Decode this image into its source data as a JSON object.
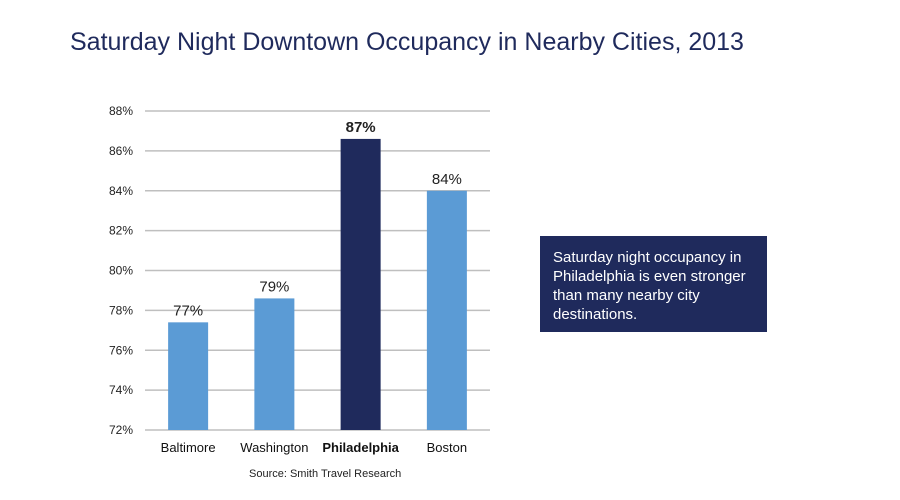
{
  "title": "Saturday Night Downtown Occupancy in Nearby Cities, 2013",
  "source": "Source: Smith Travel Research",
  "callout": "Saturday night occupancy in Philadelphia is even stronger than many nearby city destinations.",
  "colors": {
    "bar": "#5b9bd5",
    "highlight_bar": "#1f2a5c",
    "grid": "#bfbfbf",
    "title": "#1f2a5c",
    "callout_bg": "#1f2a5c"
  },
  "chart_data": {
    "type": "bar",
    "title": "Saturday Night Downtown Occupancy in Nearby Cities, 2013",
    "xlabel": "",
    "ylabel": "",
    "categories": [
      "Baltimore",
      "Washington",
      "Philadelphia",
      "Boston"
    ],
    "values": [
      77.4,
      78.6,
      86.6,
      84.0
    ],
    "data_labels": [
      "77%",
      "79%",
      "87%",
      "84%"
    ],
    "highlight": "Philadelphia",
    "ylim": [
      72,
      88
    ],
    "yticks": [
      72,
      74,
      76,
      78,
      80,
      82,
      84,
      86,
      88
    ],
    "ytick_labels": [
      "72%",
      "74%",
      "76%",
      "78%",
      "80%",
      "82%",
      "84%",
      "86%",
      "88%"
    ],
    "grid": true,
    "legend": "none"
  }
}
